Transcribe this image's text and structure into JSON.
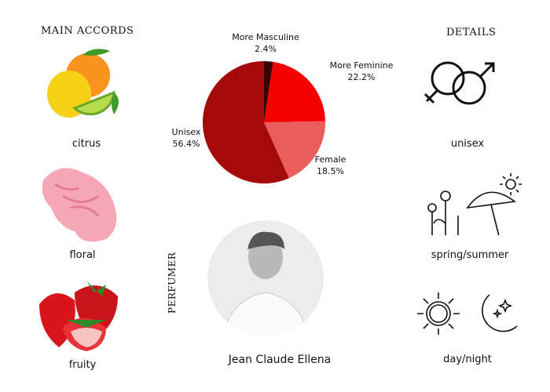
{
  "accords": {
    "title": "MAIN ACCORDS",
    "items": [
      {
        "label": "citrus",
        "icon": "citrus-fruits-image"
      },
      {
        "label": "floral",
        "icon": "carnation-flower-image"
      },
      {
        "label": "fruity",
        "icon": "strawberries-image"
      }
    ]
  },
  "details": {
    "title": "DETAILS",
    "items": [
      {
        "label": "unisex",
        "icon": "gender-symbols-icon"
      },
      {
        "label": "spring/summer",
        "icon": "flowers-umbrella-sun-icon"
      },
      {
        "label": "day/night",
        "icon": "sun-moon-icon"
      }
    ]
  },
  "perfumer": {
    "title": "PERFUMER",
    "name": "Jean Claude Ellena"
  },
  "chart_data": {
    "type": "pie",
    "start": "top",
    "direction": "clockwise",
    "slices": [
      {
        "name": "More Masculine",
        "value": 2.4,
        "label": "2.4%",
        "color": "#3a0505"
      },
      {
        "name": "More Feminine",
        "value": 22.2,
        "label": "22.2%",
        "color": "#f40000"
      },
      {
        "name": "Female",
        "value": 18.5,
        "label": "18.5%",
        "color": "#ea5d5d"
      },
      {
        "name": "Unisex",
        "value": 56.4,
        "label": "56.4%",
        "color": "#a40a0a"
      }
    ]
  }
}
